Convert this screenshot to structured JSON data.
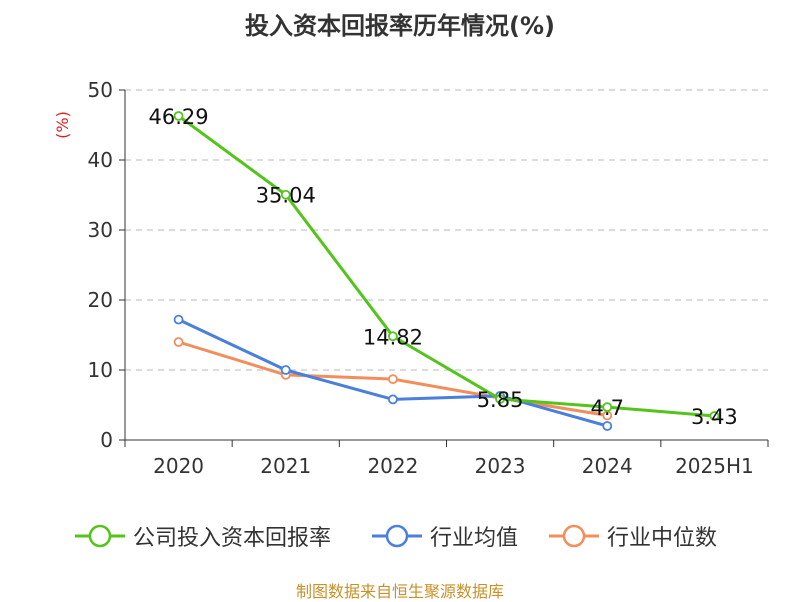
{
  "chart_data": {
    "type": "line",
    "title": "投入资本回报率历年情况(%)",
    "ylabel": "(%)",
    "xlabel": "",
    "categories": [
      "2020",
      "2021",
      "2022",
      "2023",
      "2024",
      "2025H1"
    ],
    "ylim": [
      0,
      50
    ],
    "yticks": [
      0,
      10,
      20,
      30,
      40,
      50
    ],
    "grid": true,
    "legend_position": "bottom",
    "series": [
      {
        "name": "公司投入资本回报率",
        "color": "#52c41a",
        "values": [
          46.29,
          35.04,
          14.82,
          5.85,
          4.7,
          3.43
        ],
        "data_labels": [
          "46.29",
          "35.04",
          "14.82",
          "5.85",
          "4.7",
          "3.43"
        ]
      },
      {
        "name": "行业均值",
        "color": "#4a7fdb",
        "values": [
          17.2,
          10.0,
          5.8,
          6.3,
          2.0,
          null
        ]
      },
      {
        "name": "行业中位数",
        "color": "#f28e5a",
        "values": [
          14.0,
          9.3,
          8.7,
          6.0,
          3.5,
          null
        ]
      }
    ]
  },
  "source_note": "制图数据来自恒生聚源数据库"
}
